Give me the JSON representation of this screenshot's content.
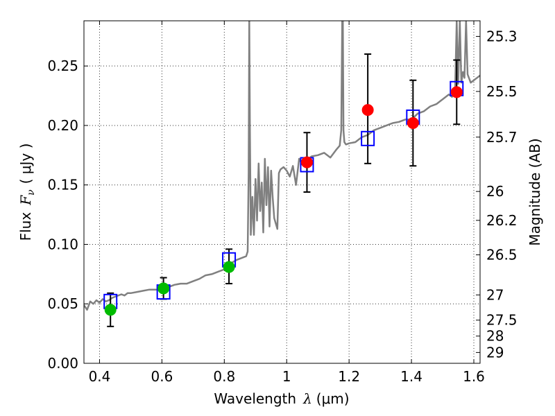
{
  "chart_data": {
    "type": "scatter",
    "xlabel_prefix": "Wavelength",
    "xlabel_symbol": "λ",
    "xlabel_unit": "(μm)",
    "ylabel_prefix": "Flux",
    "ylabel_symbol": "F",
    "ylabel_subscript": "ν",
    "ylabel_unit": "( μJy )",
    "y2label": "Magnitude (AB)",
    "xlim": [
      0.35,
      1.62
    ],
    "ylim": [
      0.0,
      0.288
    ],
    "x_ticks": [
      0.4,
      0.6,
      0.8,
      1.0,
      1.2,
      1.4,
      1.6
    ],
    "x_tick_labels": [
      "0.4",
      "0.6",
      "0.8",
      "1",
      "1.2",
      "1.4",
      "1.6"
    ],
    "y_ticks": [
      0.0,
      0.05,
      0.1,
      0.15,
      0.2,
      0.25
    ],
    "y_tick_labels": [
      "0.00",
      "0.05",
      "0.10",
      "0.15",
      "0.20",
      "0.25"
    ],
    "mag_ticks": [
      {
        "label": "25.3",
        "flux": 0.2749
      },
      {
        "label": "25.5",
        "flux": 0.2286
      },
      {
        "label": "25.7",
        "flux": 0.1902
      },
      {
        "label": "26",
        "flux": 0.1445
      },
      {
        "label": "26.2",
        "flux": 0.1202
      },
      {
        "label": "26.5",
        "flux": 0.0912
      },
      {
        "label": "27",
        "flux": 0.0575
      },
      {
        "label": "27.5",
        "flux": 0.0363
      },
      {
        "label": "28",
        "flux": 0.0229
      },
      {
        "label": "29",
        "flux": 0.0091
      }
    ],
    "grid": true,
    "series": [
      {
        "name": "model-spectrum",
        "kind": "line",
        "color": "#808080",
        "x": [
          0.35,
          0.36,
          0.37,
          0.38,
          0.39,
          0.4,
          0.41,
          0.42,
          0.43,
          0.44,
          0.45,
          0.46,
          0.47,
          0.48,
          0.49,
          0.5,
          0.52,
          0.54,
          0.56,
          0.58,
          0.6,
          0.62,
          0.64,
          0.66,
          0.68,
          0.7,
          0.72,
          0.74,
          0.76,
          0.78,
          0.8,
          0.82,
          0.84,
          0.86,
          0.87,
          0.875,
          0.878,
          0.88,
          0.882,
          0.885,
          0.89,
          0.895,
          0.9,
          0.905,
          0.91,
          0.915,
          0.92,
          0.925,
          0.93,
          0.935,
          0.94,
          0.945,
          0.95,
          0.955,
          0.96,
          0.97,
          0.975,
          0.98,
          0.99,
          1.0,
          1.01,
          1.02,
          1.03,
          1.04,
          1.05,
          1.06,
          1.08,
          1.1,
          1.12,
          1.14,
          1.16,
          1.17,
          1.175,
          1.178,
          1.18,
          1.182,
          1.185,
          1.19,
          1.2,
          1.22,
          1.24,
          1.26,
          1.28,
          1.3,
          1.32,
          1.34,
          1.36,
          1.38,
          1.4,
          1.42,
          1.44,
          1.46,
          1.48,
          1.5,
          1.52,
          1.53,
          1.54,
          1.545,
          1.55,
          1.555,
          1.56,
          1.565,
          1.57,
          1.575,
          1.58,
          1.59,
          1.6,
          1.61,
          1.62
        ],
        "y": [
          0.049,
          0.045,
          0.052,
          0.05,
          0.053,
          0.051,
          0.054,
          0.052,
          0.053,
          0.055,
          0.056,
          0.057,
          0.058,
          0.057,
          0.059,
          0.059,
          0.06,
          0.061,
          0.062,
          0.062,
          0.062,
          0.064,
          0.066,
          0.067,
          0.067,
          0.069,
          0.071,
          0.074,
          0.075,
          0.077,
          0.079,
          0.084,
          0.087,
          0.089,
          0.09,
          0.094,
          0.16,
          0.288,
          0.2,
          0.108,
          0.14,
          0.108,
          0.155,
          0.12,
          0.168,
          0.128,
          0.152,
          0.11,
          0.172,
          0.133,
          0.165,
          0.115,
          0.162,
          0.14,
          0.122,
          0.113,
          0.16,
          0.163,
          0.165,
          0.162,
          0.157,
          0.166,
          0.15,
          0.172,
          0.167,
          0.17,
          0.174,
          0.175,
          0.177,
          0.173,
          0.18,
          0.183,
          0.196,
          0.288,
          0.288,
          0.196,
          0.186,
          0.184,
          0.185,
          0.186,
          0.19,
          0.192,
          0.196,
          0.198,
          0.2,
          0.202,
          0.203,
          0.205,
          0.205,
          0.21,
          0.212,
          0.216,
          0.218,
          0.222,
          0.226,
          0.224,
          0.23,
          0.288,
          0.235,
          0.288,
          0.236,
          0.245,
          0.24,
          0.288,
          0.243,
          0.236,
          0.238,
          0.24,
          0.242
        ]
      },
      {
        "name": "model-photometry",
        "kind": "open-square",
        "color": "#0000ff",
        "x": [
          0.435,
          0.605,
          0.815,
          1.065,
          1.26,
          1.405,
          1.545
        ],
        "y": [
          0.052,
          0.06,
          0.087,
          0.167,
          0.189,
          0.207,
          0.231
        ]
      },
      {
        "name": "optical-observations",
        "kind": "filled-circle",
        "color": "#00bb00",
        "x": [
          0.435,
          0.605,
          0.815
        ],
        "y": [
          0.045,
          0.063,
          0.081
        ],
        "yerr_low": [
          0.031,
          0.054,
          0.067
        ],
        "yerr_high": [
          0.059,
          0.072,
          0.096
        ]
      },
      {
        "name": "infrared-observations",
        "kind": "filled-circle",
        "color": "#ff0000",
        "x": [
          1.065,
          1.26,
          1.405,
          1.545
        ],
        "y": [
          0.169,
          0.213,
          0.202,
          0.228
        ],
        "yerr_low": [
          0.144,
          0.168,
          0.166,
          0.201
        ],
        "yerr_high": [
          0.194,
          0.26,
          0.238,
          0.255
        ]
      }
    ]
  }
}
